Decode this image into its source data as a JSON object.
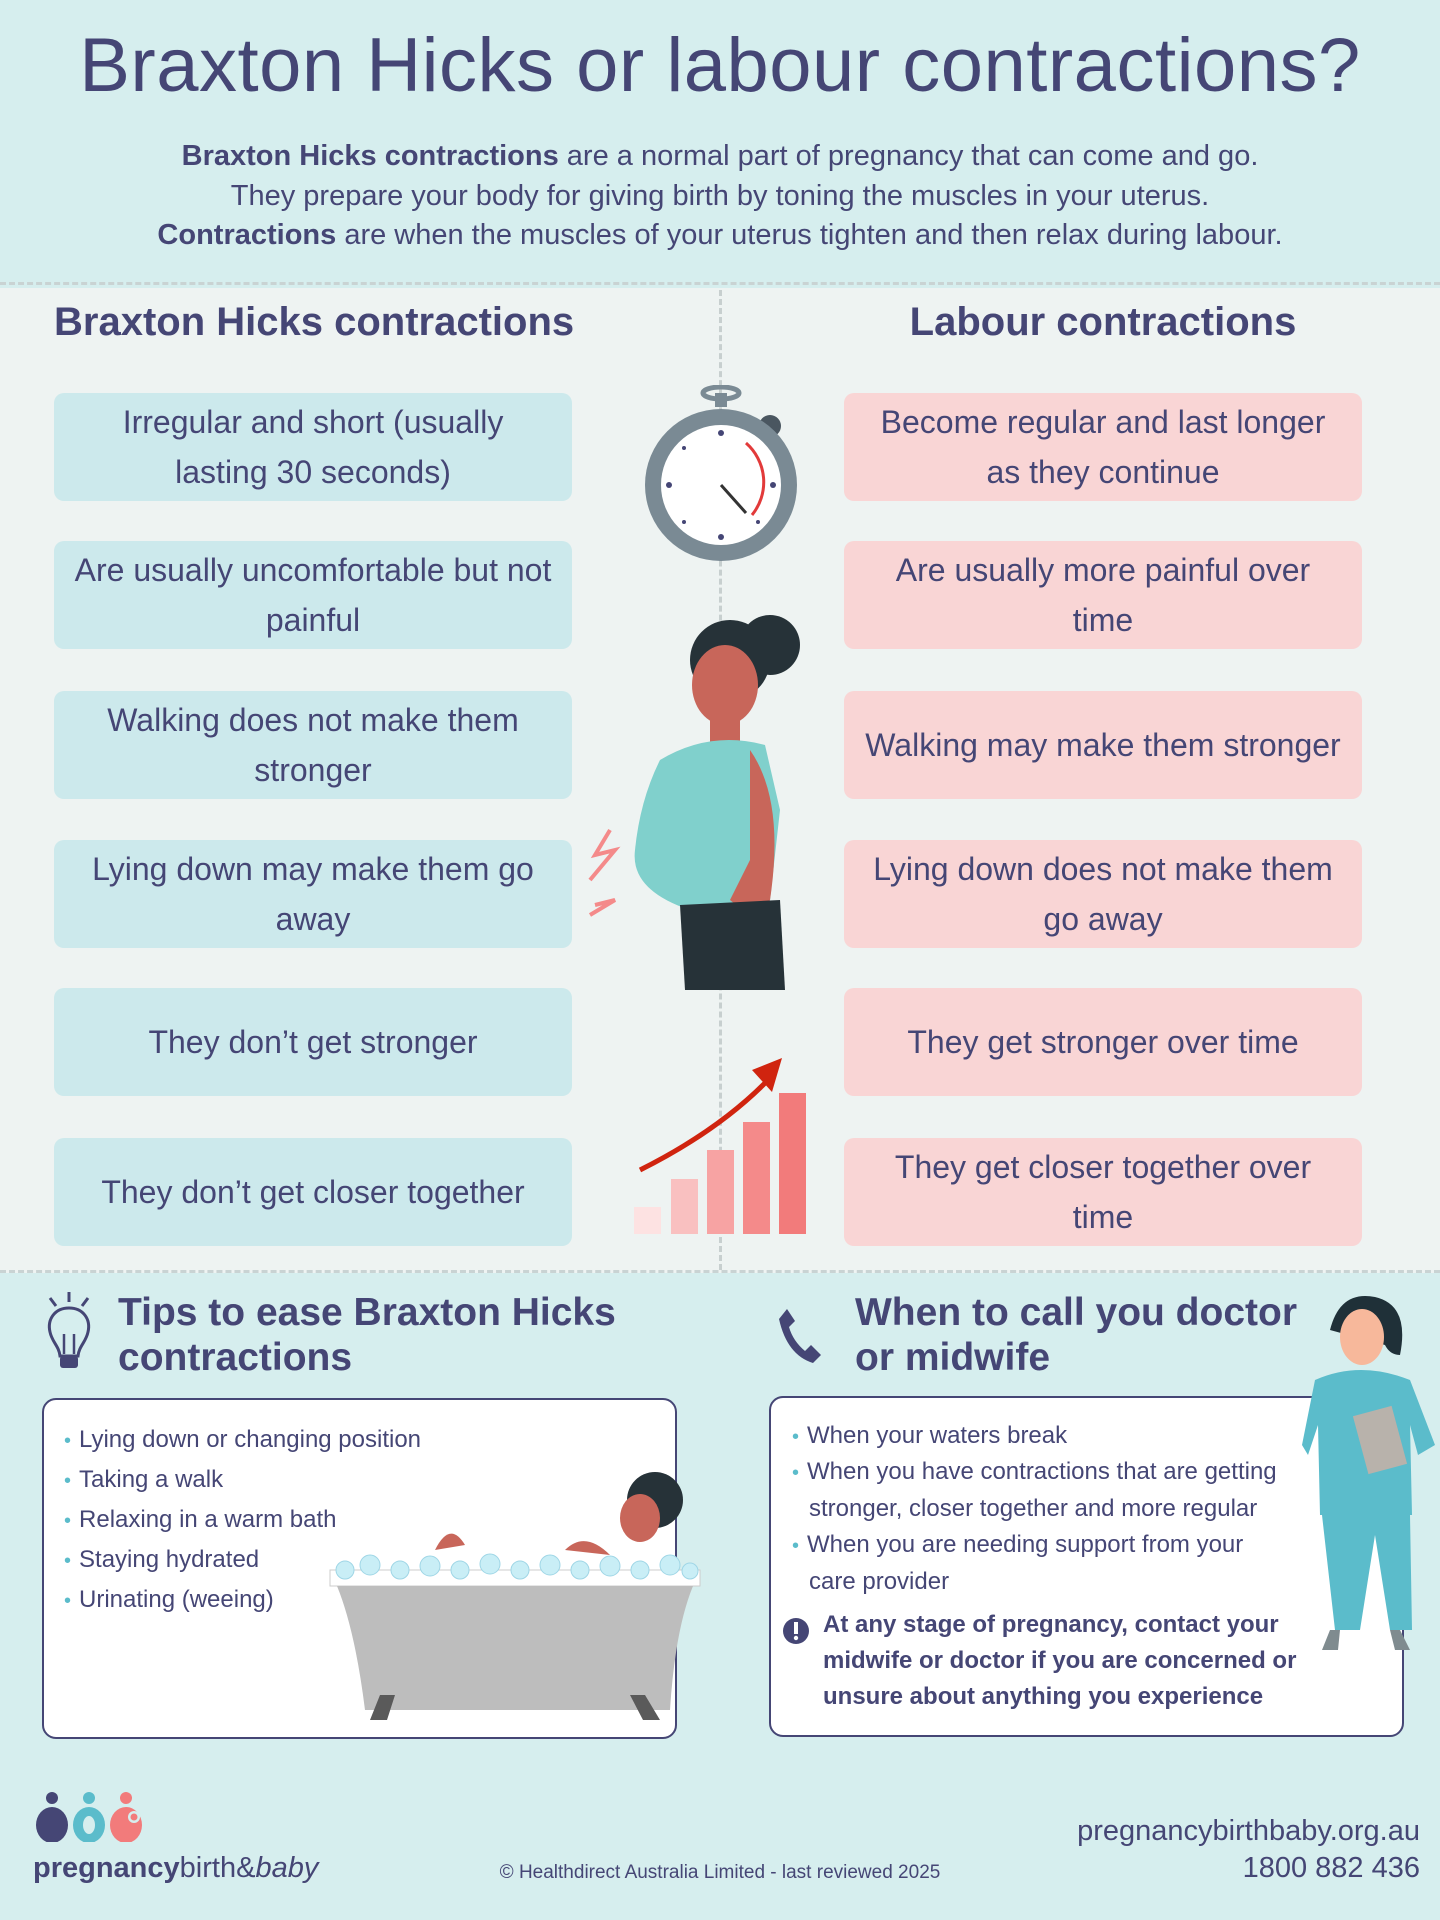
{
  "header": {
    "title": "Braxton Hicks or labour contractions?",
    "intro": [
      {
        "bold": "Braxton Hicks contractions",
        "text": " are a normal part of pregnancy that can come and go."
      },
      {
        "bold": "",
        "text": "They prepare your body for giving birth by toning the muscles in your uterus."
      },
      {
        "bold": "Contractions",
        "text": " are when the muscles of your uterus tighten and then relax during labour."
      }
    ]
  },
  "comparison": {
    "left_heading": "Braxton Hicks contractions",
    "right_heading": "Labour contractions",
    "left": [
      "Irregular and short (usually lasting 30 seconds)",
      "Are usually uncomfortable but not painful",
      "Walking does not make them stronger",
      "Lying down may make them go away",
      "They don’t get stronger",
      "They don’t get closer together"
    ],
    "right": [
      "Become regular and last longer as they continue",
      "Are usually more painful over time",
      "Walking may make them stronger",
      "Lying down does not make them go away",
      "They get stronger over time",
      "They get closer together over time"
    ]
  },
  "tips": {
    "heading": "Tips to ease Braxton Hicks contractions",
    "items": [
      "Lying down or changing position",
      "Taking a walk",
      "Relaxing in a warm bath",
      "Staying hydrated",
      "Urinating (weeing)"
    ]
  },
  "call": {
    "heading": "When to call you doctor or midwife",
    "items": [
      "When your waters break",
      "When you have contractions that are getting stronger, closer together and more regular",
      "When you are needing support from your care provider"
    ],
    "warning": "At any stage of pregnancy, contact your midwife or doctor if you are concerned or unsure about anything you experience"
  },
  "footer": {
    "logo_bold": "pregnancy",
    "logo_mid": "birth&",
    "logo_italic": "baby",
    "copyright": "© Healthdirect Australia Limited - last reviewed 2025",
    "website": "pregnancybirthbaby.org.au",
    "phone": "1800 882 436"
  },
  "colors": {
    "navy": "#454675",
    "teal": "#5bbccb",
    "coral": "#f27b7b",
    "left_box": "#cce9ec",
    "right_box": "#f9d5d5"
  }
}
